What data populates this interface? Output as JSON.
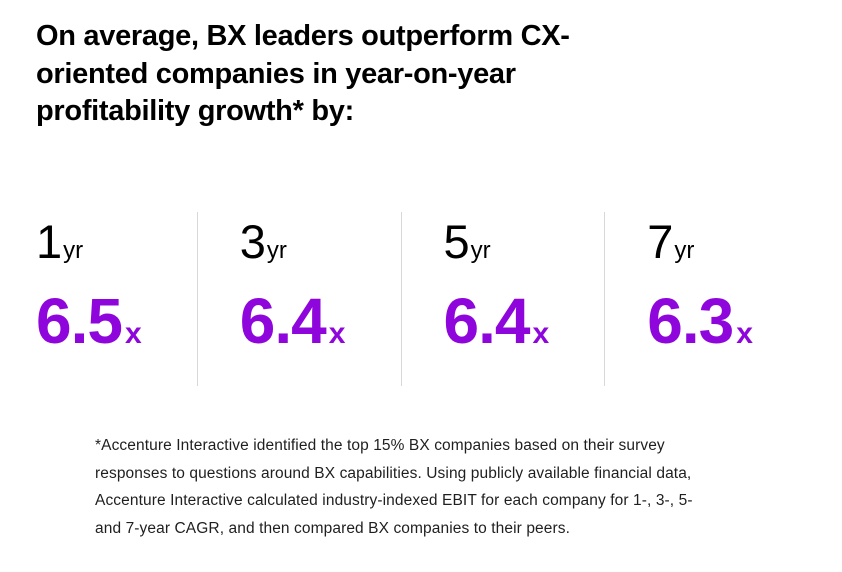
{
  "colors": {
    "accent": "#8e06db",
    "divider": "#d8d8d8",
    "headline_ink": "#000000",
    "footnote_ink": "#1f1f1f",
    "background": "#ffffff"
  },
  "headline": "On average, BX leaders outperform CX-oriented companies in year-on-year profitability growth* by:",
  "stats": [
    {
      "period_value": "1",
      "period_unit": "yr",
      "multiplier": "6.5",
      "multiplier_unit": "x"
    },
    {
      "period_value": "3",
      "period_unit": "yr",
      "multiplier": "6.4",
      "multiplier_unit": "x"
    },
    {
      "period_value": "5",
      "period_unit": "yr",
      "multiplier": "6.4",
      "multiplier_unit": "x"
    },
    {
      "period_value": "7",
      "period_unit": "yr",
      "multiplier": "6.3",
      "multiplier_unit": "x"
    }
  ],
  "footnote": "*Accenture Interactive identified the top 15% BX companies based on their survey responses to questions around BX capabilities. Using publicly available financial data, Accenture Interactive calculated industry-indexed EBIT for each company for 1-, 3-, 5- and 7-year CAGR, and then compared BX companies to their peers.",
  "chart_data": {
    "type": "table",
    "title": "On average, BX leaders outperform CX-oriented companies in year-on-year profitability growth* by:",
    "categories": [
      "1yr",
      "3yr",
      "5yr",
      "7yr"
    ],
    "values": [
      6.5,
      6.4,
      6.4,
      6.3
    ],
    "unit": "x",
    "value_meaning": "profitability growth multiplier of BX leaders vs CX-oriented companies",
    "annotation": "*Accenture Interactive identified the top 15% BX companies based on their survey responses to questions around BX capabilities. Using publicly available financial data, Accenture Interactive calculated industry-indexed EBIT for each company for 1-, 3-, 5- and 7-year CAGR, and then compared BX companies to their peers.",
    "legend": "off",
    "grid": "off"
  }
}
